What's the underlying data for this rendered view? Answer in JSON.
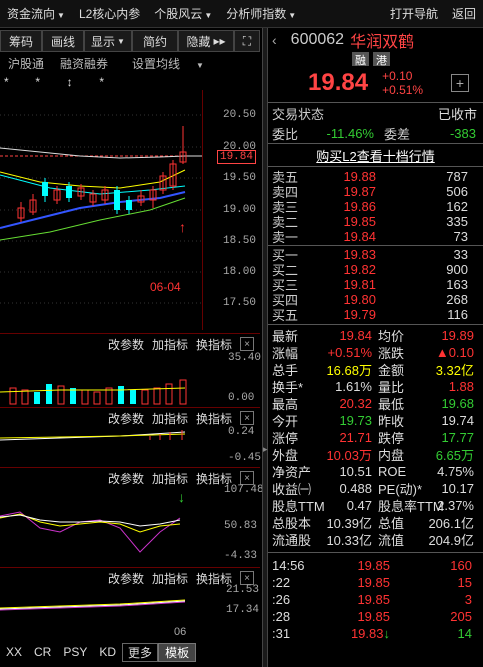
{
  "menu": {
    "items": [
      "资金流向",
      "L2核心内参",
      "个股风云",
      "分析师指数"
    ],
    "right": [
      "打开导航",
      "返回"
    ]
  },
  "toolbar": [
    "筹码",
    "画线",
    "显示",
    "简约",
    "隐藏"
  ],
  "subtabs": [
    "沪股通",
    "融资融券",
    "设置均线"
  ],
  "stars": "*        *        ↕        *",
  "main_chart": {
    "y_ticks": [
      "20.50",
      "20.00",
      "19.50",
      "19.00",
      "18.50",
      "18.00",
      "17.50"
    ],
    "current_price_label": "19.84",
    "date_label": "06-04"
  },
  "panels": [
    {
      "buttons": [
        "改参数",
        "加指标",
        "换指标"
      ],
      "ticks": [
        "35.40",
        "0.00"
      ]
    },
    {
      "buttons": [
        "改参数",
        "加指标",
        "换指标"
      ],
      "ticks": [
        "0.24",
        "-0.45"
      ]
    },
    {
      "buttons": [
        "改参数",
        "加指标",
        "换指标"
      ],
      "ticks": [
        "107.48",
        "50.83",
        "-4.33"
      ]
    },
    {
      "buttons": [
        "改参数",
        "加指标",
        "换指标"
      ],
      "ticks": [
        "21.53",
        "17.34"
      ]
    }
  ],
  "x_axis_label": "06",
  "bottom_tabs": [
    "XX",
    "CR",
    "PSY",
    "KD",
    "更多",
    "模板"
  ],
  "stock": {
    "code": "600062",
    "name": "华润双鹤",
    "badges": [
      "融",
      "港"
    ],
    "price": "19.84",
    "change": "+0.10",
    "change_pct": "+0.51%"
  },
  "trade_status": {
    "label": "交易状态",
    "value": "已收市"
  },
  "weibi": {
    "label": "委比",
    "value": "-11.46%",
    "label2": "委差",
    "value2": "-383"
  },
  "l2_link": "购买L2查看十档行情",
  "asks": [
    {
      "label": "卖五",
      "price": "19.88",
      "vol": "787"
    },
    {
      "label": "卖四",
      "price": "19.87",
      "vol": "506"
    },
    {
      "label": "卖三",
      "price": "19.86",
      "vol": "162"
    },
    {
      "label": "卖二",
      "price": "19.85",
      "vol": "335"
    },
    {
      "label": "卖一",
      "price": "19.84",
      "vol": "73"
    }
  ],
  "bids": [
    {
      "label": "买一",
      "price": "19.83",
      "vol": "33"
    },
    {
      "label": "买二",
      "price": "19.82",
      "vol": "900"
    },
    {
      "label": "买三",
      "price": "19.81",
      "vol": "163"
    },
    {
      "label": "买四",
      "price": "19.80",
      "vol": "268"
    },
    {
      "label": "买五",
      "price": "19.79",
      "vol": "116"
    }
  ],
  "quote": [
    {
      "l": "最新",
      "v": "19.84",
      "c": "red",
      "l2": "均价",
      "v2": "19.89",
      "c2": "red"
    },
    {
      "l": "涨幅",
      "v": "+0.51%",
      "c": "red",
      "l2": "涨跌",
      "v2": "▲0.10",
      "c2": "red"
    },
    {
      "l": "总手",
      "v": "16.68万",
      "c": "yellow",
      "l2": "金额",
      "v2": "3.32亿",
      "c2": "yellow"
    },
    {
      "l": "换手*",
      "v": "1.61%",
      "c": "white",
      "l2": "量比",
      "v2": "1.88",
      "c2": "red"
    },
    {
      "l": "最高",
      "v": "20.32",
      "c": "red",
      "l2": "最低",
      "v2": "19.68",
      "c2": "green"
    },
    {
      "l": "今开",
      "v": "19.73",
      "c": "green",
      "l2": "昨收",
      "v2": "19.74",
      "c2": "white"
    },
    {
      "l": "涨停",
      "v": "21.71",
      "c": "red",
      "l2": "跌停",
      "v2": "17.77",
      "c2": "green"
    },
    {
      "l": "外盘",
      "v": "10.03万",
      "c": "red",
      "l2": "内盘",
      "v2": "6.65万",
      "c2": "green"
    },
    {
      "l": "净资产",
      "v": "10.51",
      "c": "white",
      "l2": "ROE",
      "v2": "4.75%",
      "c2": "white"
    },
    {
      "l": "收益㈠",
      "v": "0.488",
      "c": "white",
      "l2": "PE(动)*",
      "v2": "10.17",
      "c2": "white"
    },
    {
      "l": "股息TTM",
      "v": "0.47",
      "c": "white",
      "l2": "股息率TTM",
      "v2": "2.37%",
      "c2": "white"
    },
    {
      "l": "总股本",
      "v": "10.39亿",
      "c": "white",
      "l2": "总值",
      "v2": "206.1亿",
      "c2": "white"
    },
    {
      "l": "流通股",
      "v": "10.33亿",
      "c": "white",
      "l2": "流值",
      "v2": "204.9亿",
      "c2": "white"
    }
  ],
  "ticks": [
    {
      "t": "14:56",
      "p": "19.85",
      "v": "160",
      "vc": "red",
      "arrow": ""
    },
    {
      "t": ":22",
      "p": "19.85",
      "v": "15",
      "vc": "red",
      "arrow": ""
    },
    {
      "t": ":26",
      "p": "19.85",
      "v": "3",
      "vc": "red",
      "arrow": ""
    },
    {
      "t": ":28",
      "p": "19.85",
      "v": "205",
      "vc": "red",
      "arrow": ""
    },
    {
      "t": ":31",
      "p": "19.83",
      "v": "14",
      "vc": "green",
      "arrow": "↓"
    }
  ],
  "colors": {
    "up": "#ff3333",
    "down": "#33cc33",
    "volume": "#ffff00",
    "candle_down": "#00ffff",
    "ma_blue": "#3355ff",
    "ma_green": "#66dd33"
  }
}
